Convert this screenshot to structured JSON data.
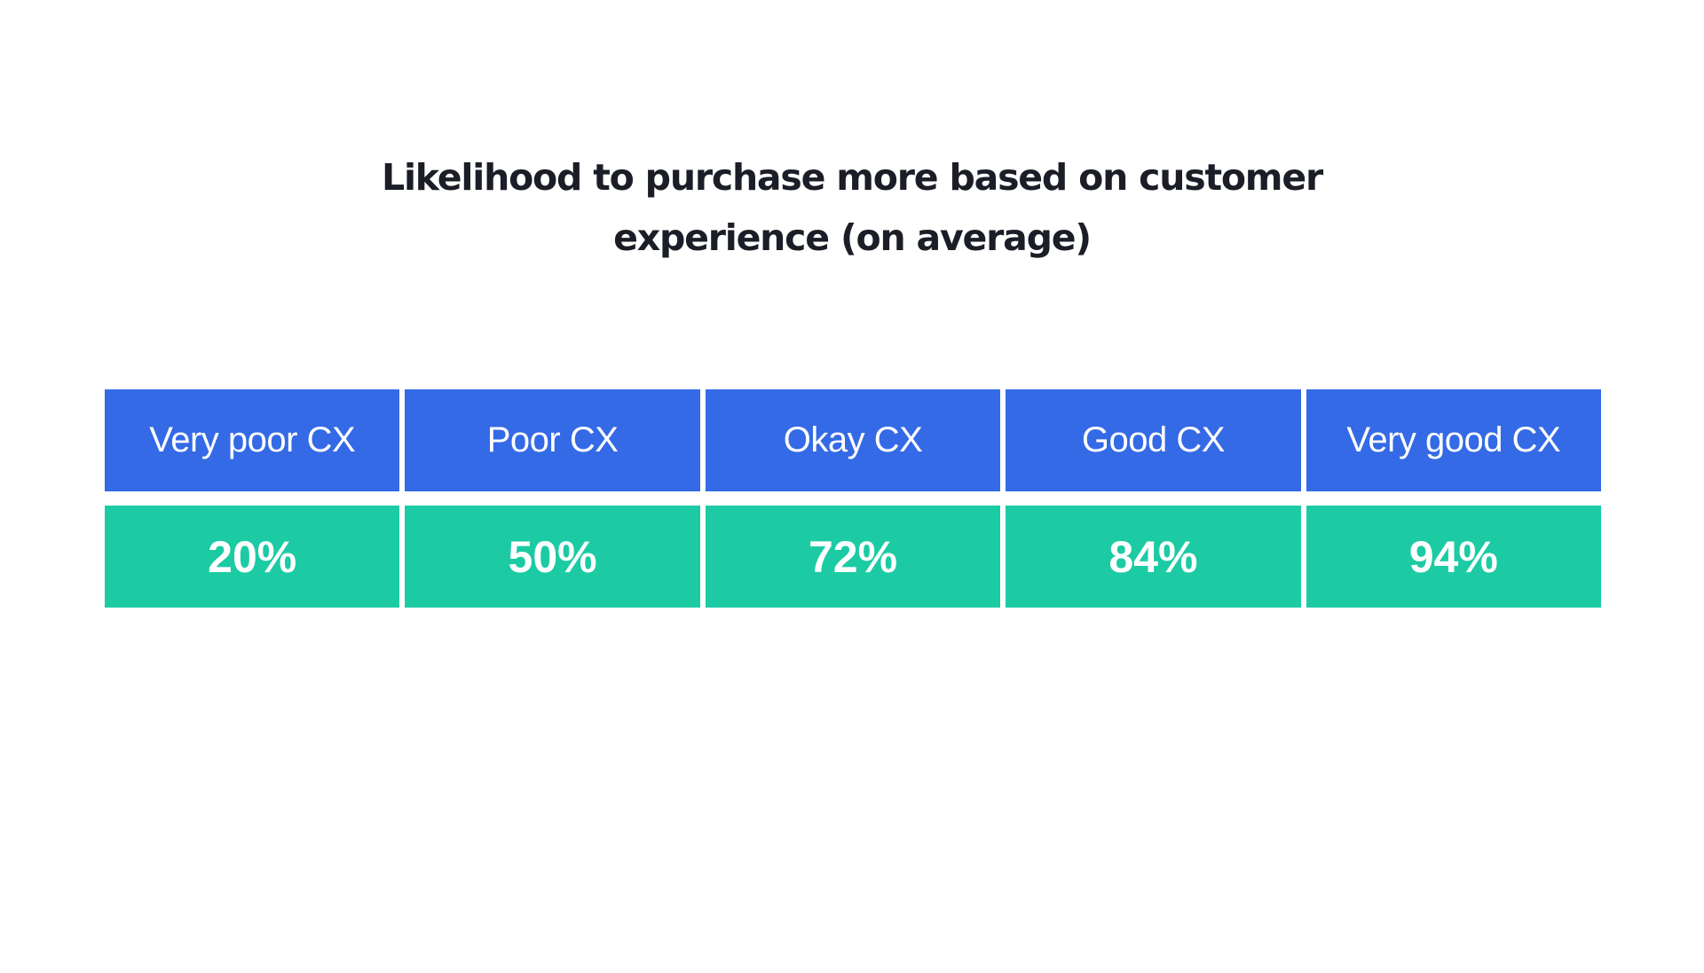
{
  "title": {
    "line1": "Likelihood to purchase more based on customer",
    "line2": "experience (on average)"
  },
  "colors": {
    "header_bg": "#346ae6",
    "value_bg": "#1ccba3",
    "title_text": "#1b1d27",
    "cell_text": "#ffffff",
    "background": "#ffffff"
  },
  "table": {
    "headers": [
      "Very poor CX",
      "Poor CX",
      "Okay CX",
      "Good CX",
      "Very good CX"
    ],
    "values": [
      "20%",
      "50%",
      "72%",
      "84%",
      "94%"
    ]
  },
  "chart_data": {
    "type": "table",
    "title": "Likelihood to purchase more based on customer experience (on average)",
    "categories": [
      "Very poor CX",
      "Poor CX",
      "Okay CX",
      "Good CX",
      "Very good CX"
    ],
    "values": [
      20,
      50,
      72,
      84,
      94
    ],
    "value_labels": [
      "20%",
      "50%",
      "72%",
      "84%",
      "94%"
    ],
    "unit": "%",
    "xlabel": "",
    "ylabel": "",
    "grid": false,
    "legend": null
  }
}
